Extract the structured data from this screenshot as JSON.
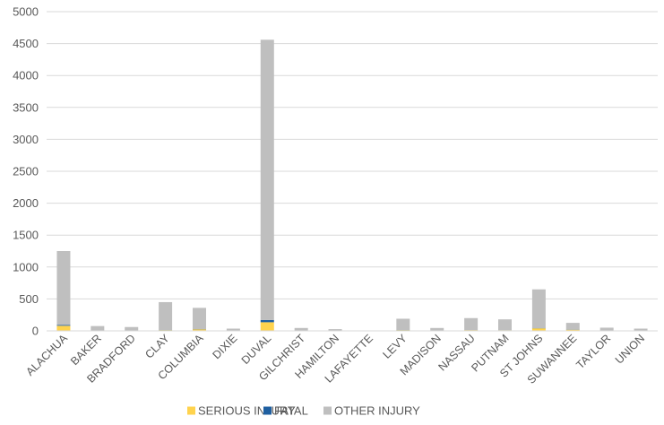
{
  "chart_data": {
    "type": "bar",
    "stacked": true,
    "title": "",
    "xlabel": "",
    "ylabel": "",
    "ylim": [
      0,
      5000
    ],
    "yticks": [
      0,
      500,
      1000,
      1500,
      2000,
      2500,
      3000,
      3500,
      4000,
      4500,
      5000
    ],
    "grid": true,
    "legend_position": "bottom",
    "categories": [
      "ALACHUA",
      "BAKER",
      "BRADFORD",
      "CLAY",
      "COLUMBIA",
      "DIXIE",
      "DUVAL",
      "GILCHRIST",
      "HAMILTON",
      "LAFAYETTE",
      "LEVY",
      "MADISON",
      "NASSAU",
      "PUTNAM",
      "ST JOHNS",
      "SUWANNEE",
      "TAYLOR",
      "UNION"
    ],
    "series": [
      {
        "name": "SERIOUS INJURY",
        "color": "#FFD34D",
        "values": [
          80,
          4,
          3,
          12,
          25,
          2,
          135,
          3,
          2,
          1,
          12,
          4,
          12,
          10,
          40,
          18,
          4,
          3
        ]
      },
      {
        "name": "FATAL",
        "color": "#1F5FA0",
        "values": [
          12,
          1,
          1,
          2,
          3,
          0,
          35,
          0,
          0,
          0,
          2,
          1,
          1,
          1,
          5,
          2,
          1,
          0
        ]
      },
      {
        "name": "OTHER INJURY",
        "color": "#BFBFBF",
        "values": [
          1158,
          70,
          56,
          436,
          332,
          33,
          4390,
          42,
          25,
          4,
          176,
          40,
          187,
          169,
          605,
          105,
          45,
          32
        ]
      }
    ]
  }
}
